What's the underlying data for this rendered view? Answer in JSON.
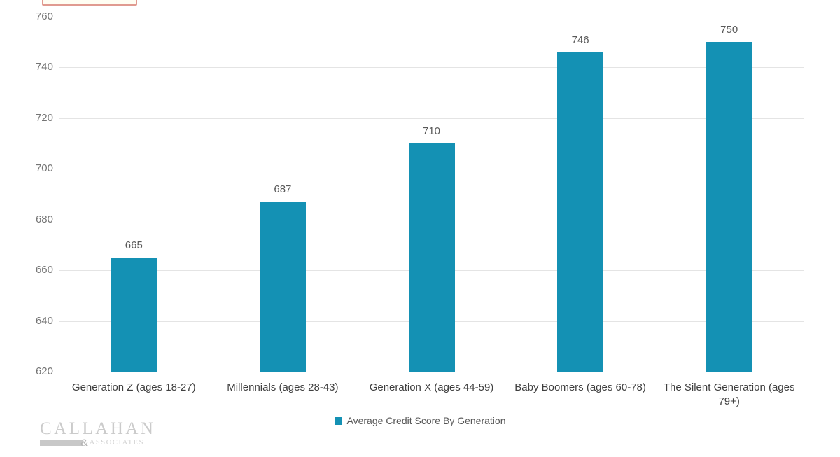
{
  "chart_data": {
    "type": "bar",
    "categories": [
      "Generation Z (ages 18-27)",
      "Millennials (ages 28-43)",
      "Generation X (ages 44-59)",
      "Baby Boomers (ages 60-78)",
      "The Silent Generation (ages 79+)"
    ],
    "values": [
      665,
      687,
      710,
      746,
      750
    ],
    "data_labels": [
      "665",
      "687",
      "710",
      "746",
      "750"
    ],
    "ylim": [
      620,
      760
    ],
    "yticks": [
      620,
      640,
      660,
      680,
      700,
      720,
      740,
      760
    ],
    "grid": true,
    "bar_color": "#1491b4",
    "gridline_color": "#e4e4e4",
    "legend_position": "bottom",
    "legend_label": "Average Credit Score By Generation"
  },
  "legend": {
    "label": "Average Credit Score By Generation",
    "swatch_color": "#1491b4"
  },
  "branding": {
    "company_top": "CALLAHAN",
    "ampersand": "&",
    "company_bottom": "ASSOCIATES"
  }
}
